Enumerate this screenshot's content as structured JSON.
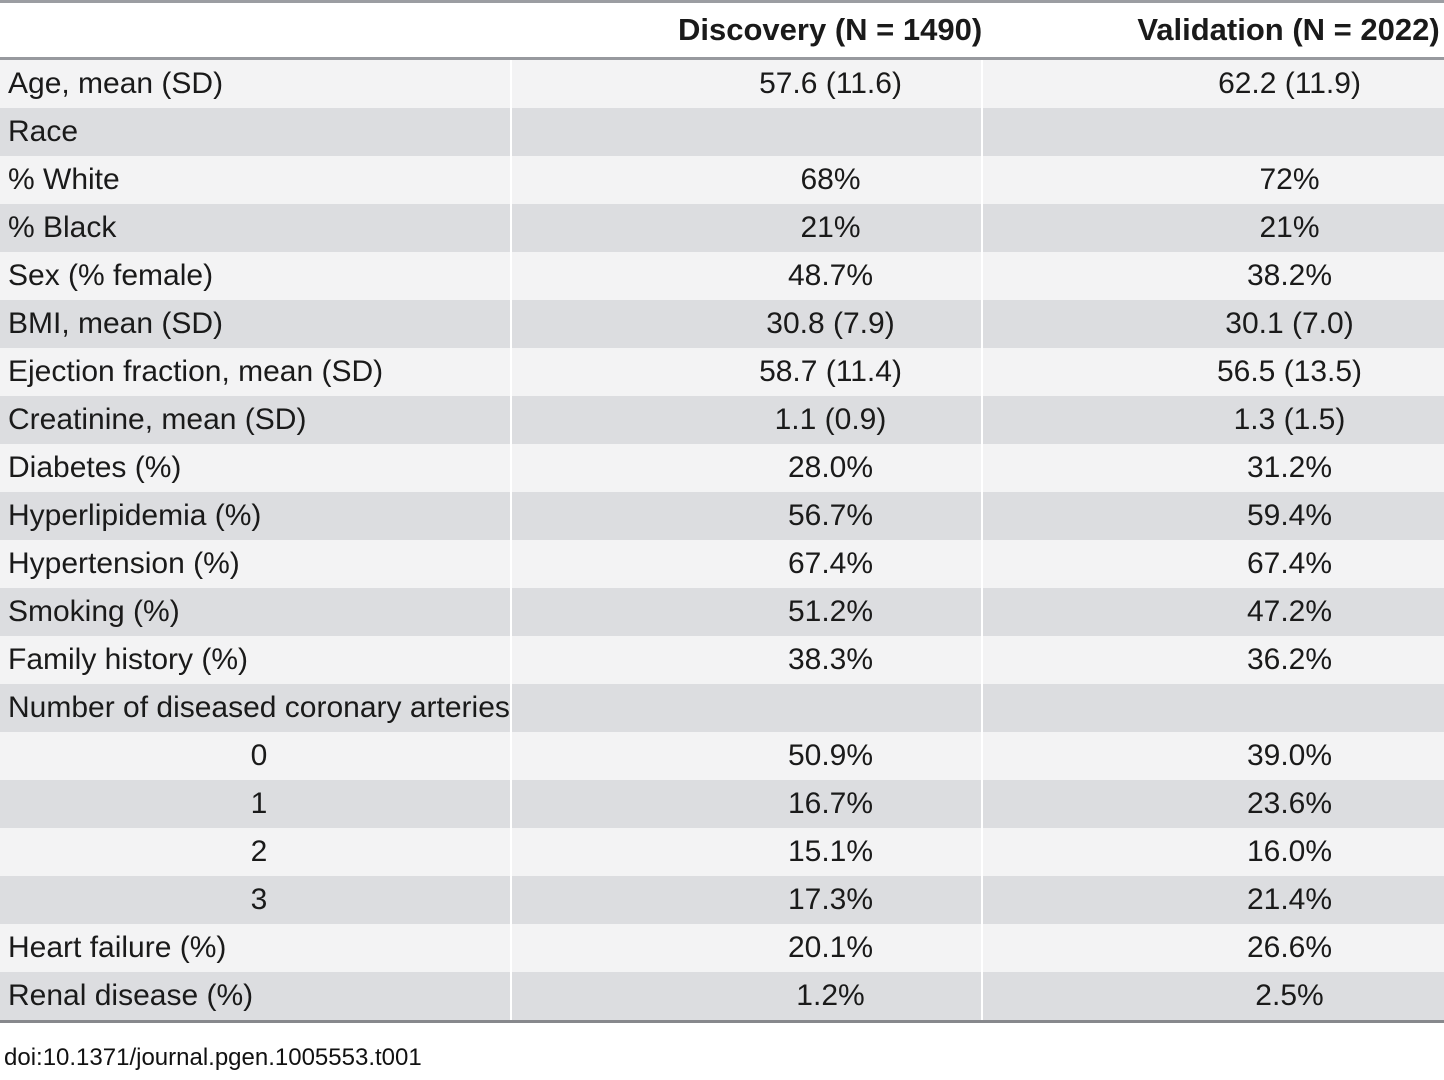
{
  "table": {
    "columns": [
      "",
      "Discovery (N = 1490)",
      "Validation (N = 2022)"
    ],
    "rows": [
      {
        "label": "Age, mean (SD)",
        "discovery": "57.6 (11.6)",
        "validation": "62.2 (11.9)",
        "type": "data"
      },
      {
        "label": "Race",
        "discovery": "",
        "validation": "",
        "type": "section"
      },
      {
        "label": "% White",
        "discovery": "68%",
        "validation": "72%",
        "type": "data"
      },
      {
        "label": "% Black",
        "discovery": "21%",
        "validation": "21%",
        "type": "data"
      },
      {
        "label": "Sex (% female)",
        "discovery": "48.7%",
        "validation": "38.2%",
        "type": "data"
      },
      {
        "label": "BMI, mean (SD)",
        "discovery": "30.8 (7.9)",
        "validation": "30.1 (7.0)",
        "type": "data"
      },
      {
        "label": "Ejection fraction, mean (SD)",
        "discovery": "58.7 (11.4)",
        "validation": "56.5 (13.5)",
        "type": "data"
      },
      {
        "label": "Creatinine, mean (SD)",
        "discovery": "1.1 (0.9)",
        "validation": "1.3 (1.5)",
        "type": "data"
      },
      {
        "label": "Diabetes (%)",
        "discovery": "28.0%",
        "validation": "31.2%",
        "type": "data"
      },
      {
        "label": "Hyperlipidemia (%)",
        "discovery": "56.7%",
        "validation": "59.4%",
        "type": "data"
      },
      {
        "label": "Hypertension (%)",
        "discovery": "67.4%",
        "validation": "67.4%",
        "type": "data"
      },
      {
        "label": "Smoking (%)",
        "discovery": "51.2%",
        "validation": "47.2%",
        "type": "data"
      },
      {
        "label": "Family history (%)",
        "discovery": "38.3%",
        "validation": "36.2%",
        "type": "data"
      },
      {
        "label": "Number of diseased coronary arteries",
        "discovery": "",
        "validation": "",
        "type": "section"
      },
      {
        "label": "0",
        "discovery": "50.9%",
        "validation": "39.0%",
        "type": "sub"
      },
      {
        "label": "1",
        "discovery": "16.7%",
        "validation": "23.6%",
        "type": "sub"
      },
      {
        "label": "2",
        "discovery": "15.1%",
        "validation": "16.0%",
        "type": "sub"
      },
      {
        "label": "3",
        "discovery": "17.3%",
        "validation": "21.4%",
        "type": "sub"
      },
      {
        "label": "Heart failure (%)",
        "discovery": "20.1%",
        "validation": "26.6%",
        "type": "data"
      },
      {
        "label": "Renal disease (%)",
        "discovery": "1.2%",
        "validation": "2.5%",
        "type": "data"
      }
    ],
    "footer": "doi:10.1371/journal.pgen.1005553.t001"
  },
  "colors": {
    "row_light": "#f3f3f4",
    "row_dark": "#dcdde0",
    "border_top": "#9b9da2",
    "border_bottom": "#87888c",
    "text": "#1a1a1a"
  }
}
